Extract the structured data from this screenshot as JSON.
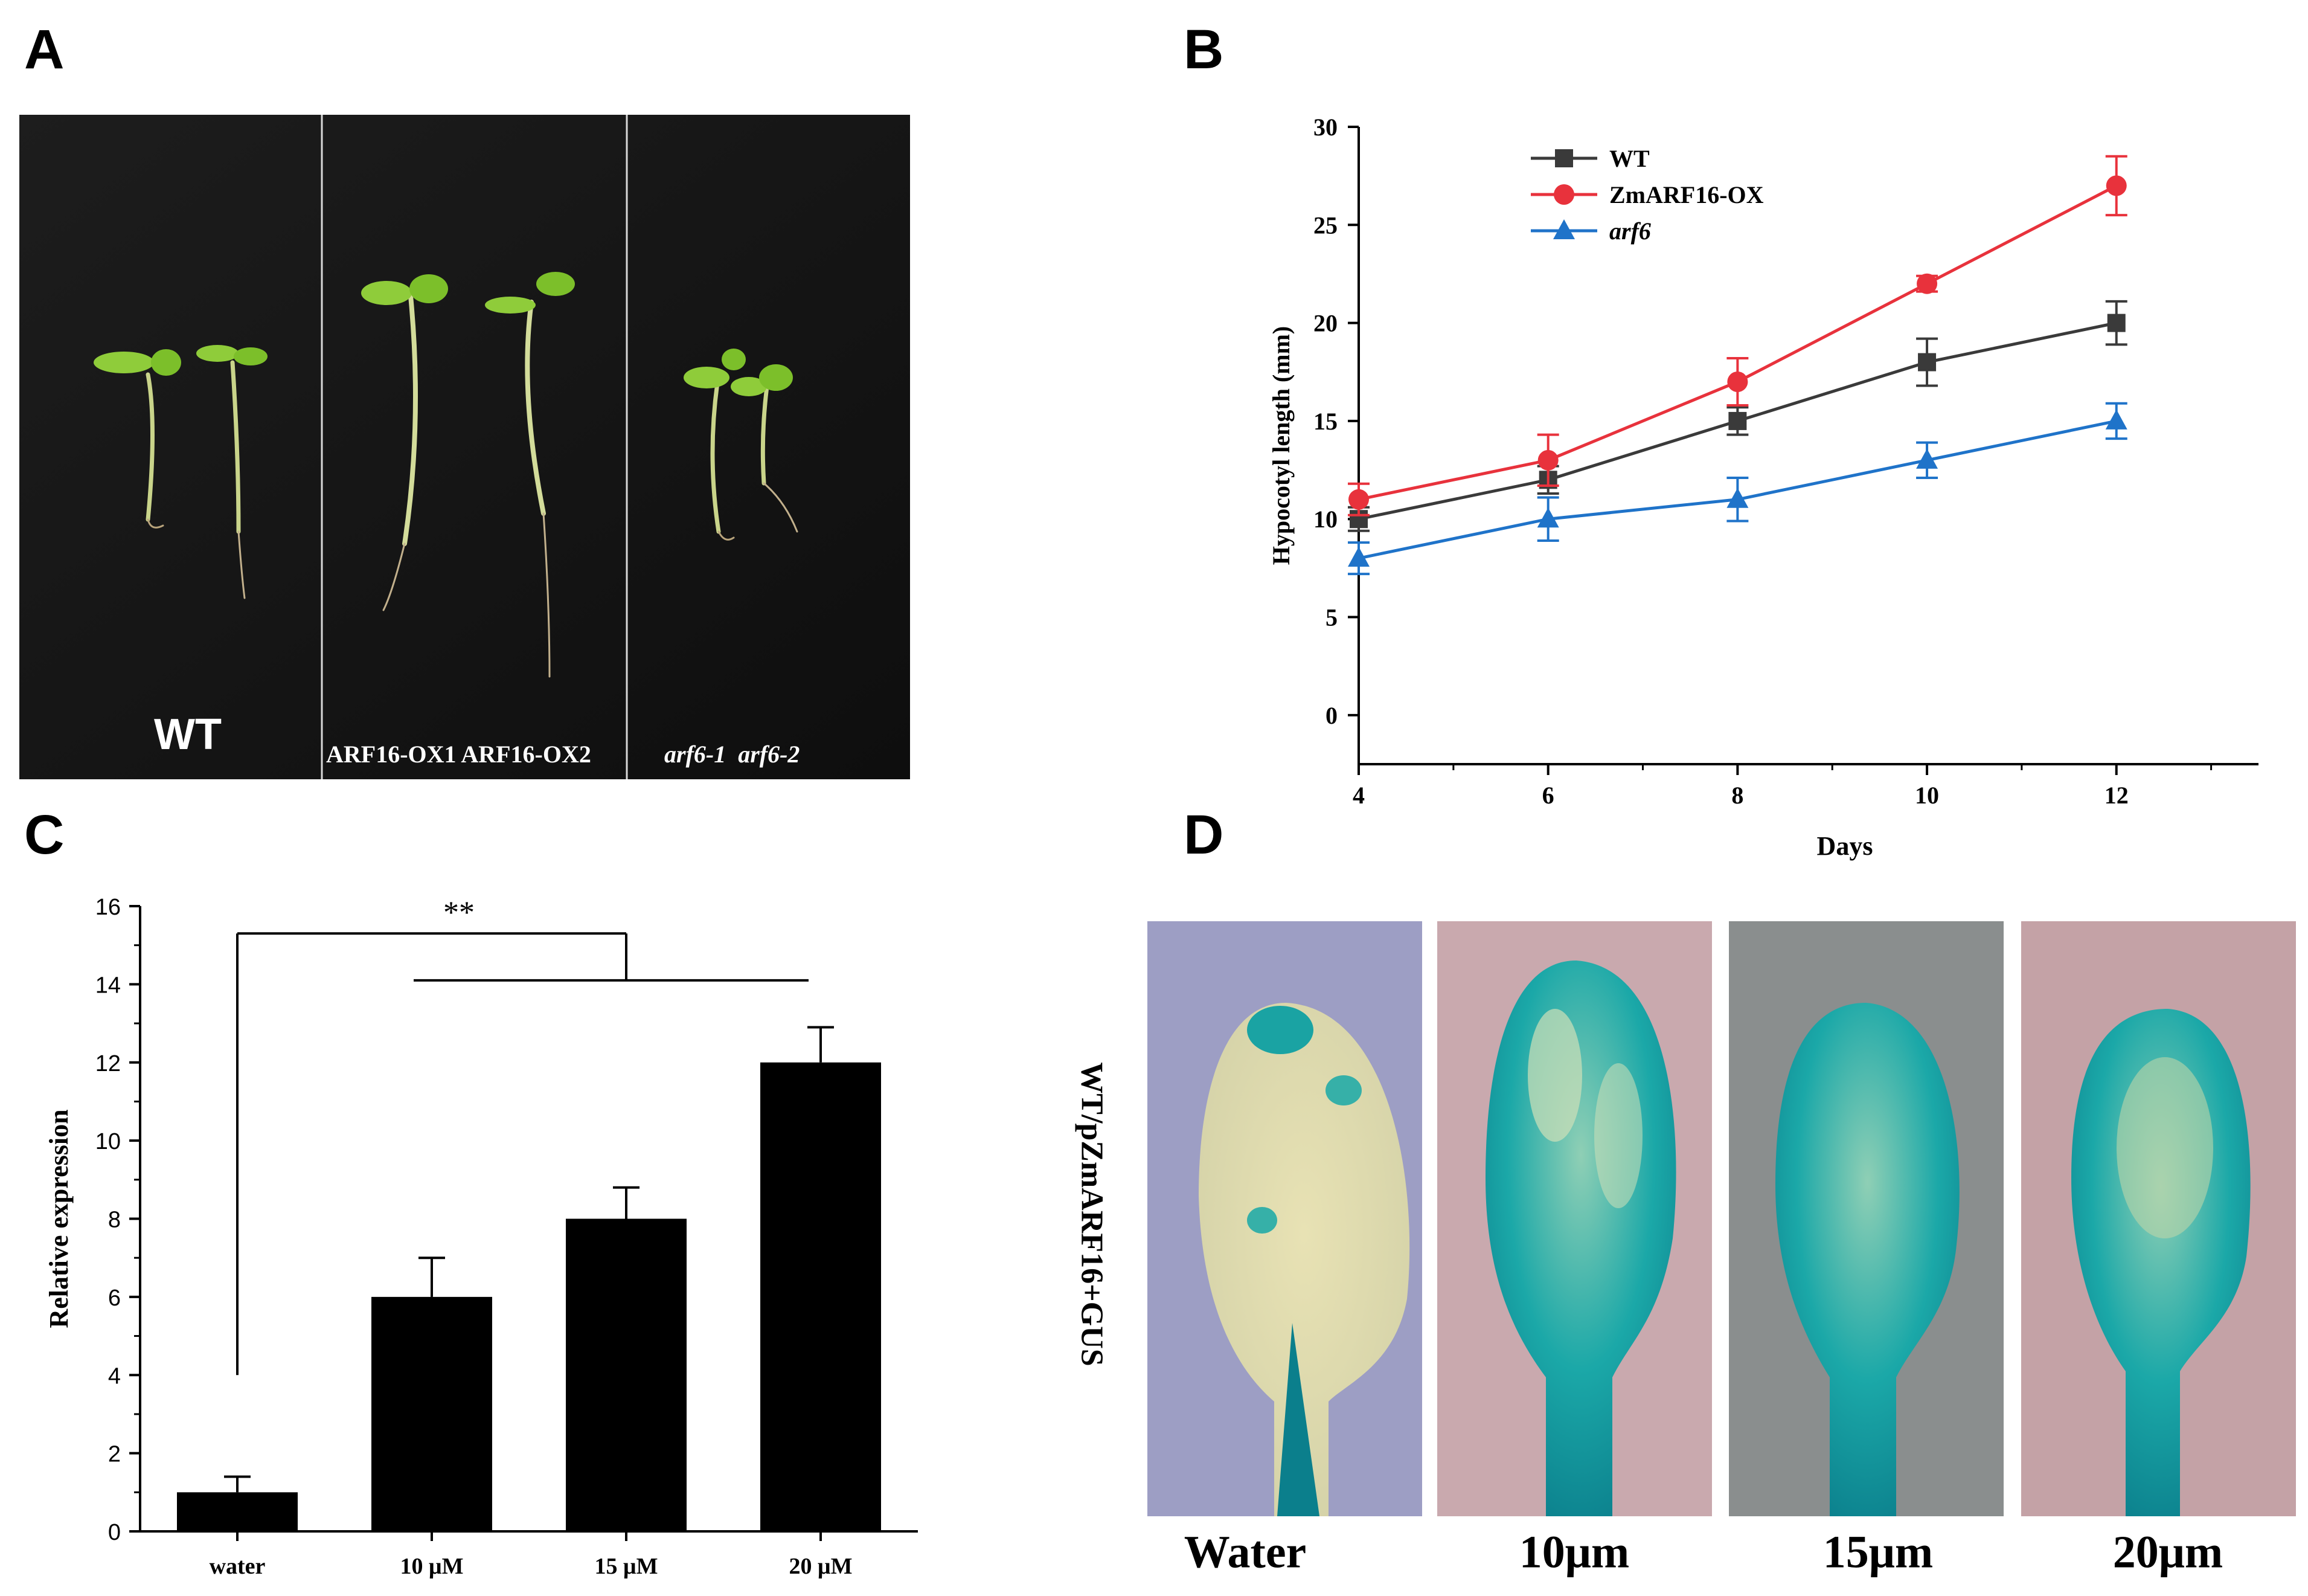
{
  "panels": {
    "a": "A",
    "b": "B",
    "c": "C",
    "d": "D"
  },
  "photo_a": {
    "labels": [
      "WT",
      "ARF16-OX1 ARF16-OX2",
      "arf6-1  arf6-2"
    ]
  },
  "photo_d": {
    "side_label": "WT/pZmARF16+GUS",
    "labels": [
      "Water",
      "10μm",
      "15μm",
      "20μm"
    ]
  },
  "chart_data": [
    {
      "type": "line",
      "panel": "B",
      "title": "",
      "xlabel": "Days",
      "ylabel": "Hypocotyl length    (mm)",
      "x": [
        4,
        6,
        8,
        10,
        12
      ],
      "xlim": [
        4,
        13.5
      ],
      "ylim": [
        -2.5,
        30
      ],
      "xticks": [
        "4",
        "6",
        "8",
        "10",
        "12"
      ],
      "yticks": [
        "0",
        "5",
        "10",
        "15",
        "20",
        "25",
        "30"
      ],
      "legend_position": "top-left",
      "series": [
        {
          "name": "WT",
          "color": "#3a3a3a",
          "marker": "square",
          "values": [
            10,
            12,
            15,
            18,
            20
          ],
          "errors": [
            0.6,
            0.7,
            0.7,
            1.2,
            1.1
          ]
        },
        {
          "name": "ZmARF16-OX",
          "color": "#e8323c",
          "marker": "circle",
          "values": [
            11,
            13,
            17,
            22,
            27
          ],
          "errors": [
            0.8,
            1.3,
            1.2,
            0.4,
            1.5
          ]
        },
        {
          "name": "arf6",
          "color": "#1f73c9",
          "marker": "triangle",
          "values": [
            8,
            10,
            11,
            13,
            15
          ],
          "errors": [
            0.8,
            1.1,
            1.1,
            0.9,
            0.9
          ]
        }
      ]
    },
    {
      "type": "bar",
      "panel": "C",
      "title": "",
      "xlabel": "",
      "ylabel": "Relative expression",
      "categories": [
        "water",
        "10 μM",
        "15 μM",
        "20 μM"
      ],
      "values": [
        1,
        6,
        8,
        12
      ],
      "errors": [
        0.4,
        1.0,
        0.8,
        0.9
      ],
      "ylim": [
        0,
        16
      ],
      "yticks": [
        "0",
        "2",
        "4",
        "6",
        "8",
        "10",
        "12",
        "14",
        "16"
      ],
      "significance": "**"
    }
  ]
}
